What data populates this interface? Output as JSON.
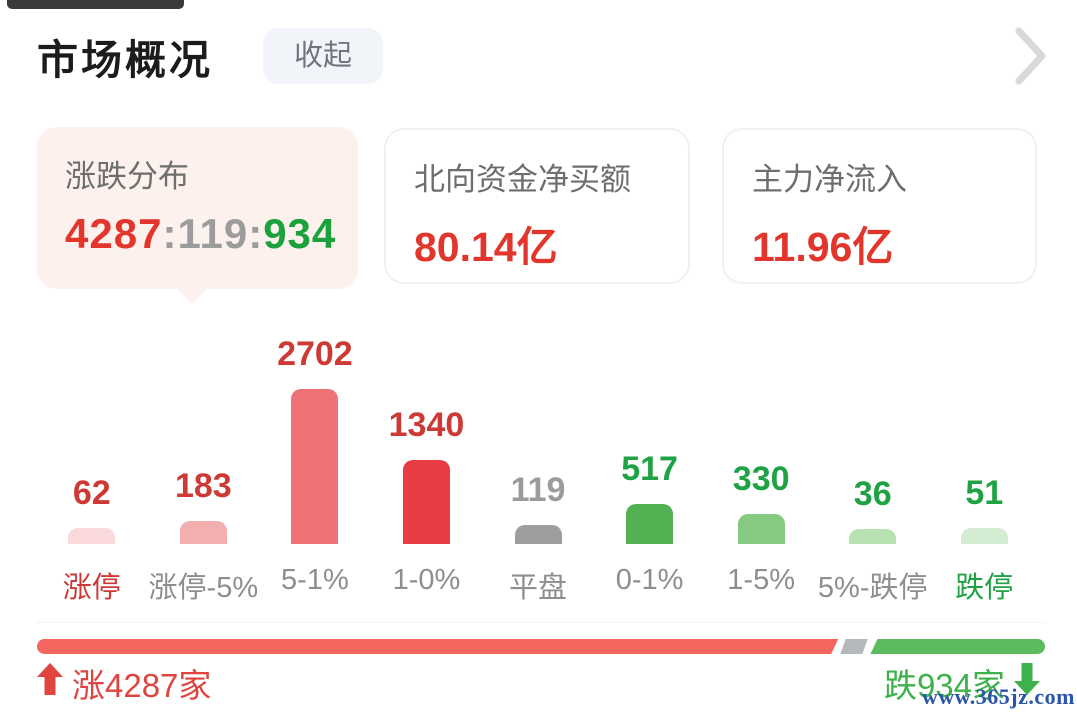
{
  "header": {
    "title": "市场概况",
    "collapse_label": "收起"
  },
  "cards": {
    "distribution": {
      "title": "涨跌分布",
      "rise": "4287",
      "flat": "119",
      "fall": "934",
      "sep": ":"
    },
    "northbound": {
      "title": "北向资金净买额",
      "value": "80.14亿"
    },
    "main_inflow": {
      "title": "主力净流入",
      "value": "11.96亿"
    }
  },
  "chart_data": {
    "type": "bar",
    "title": "涨跌分布",
    "categories": [
      "涨停",
      "涨停-5%",
      "5-1%",
      "1-0%",
      "平盘",
      "0-1%",
      "1-5%",
      "5%-跌停",
      "跌停"
    ],
    "values": [
      62,
      183,
      2702,
      1340,
      119,
      517,
      330,
      36,
      51
    ],
    "ylim": [
      0,
      2702
    ],
    "grid": false,
    "value_labels_position": "above-bars",
    "bars": [
      {
        "label": "涨停",
        "value": 62,
        "bar_color": "#f9d9d9",
        "value_color": "#cd3a36",
        "label_color": "#cd3a36"
      },
      {
        "label": "涨停-5%",
        "value": 183,
        "bar_color": "#f3aeb0",
        "value_color": "#cd3a36",
        "label_color": "#8e8e8e"
      },
      {
        "label": "5-1%",
        "value": 2702,
        "bar_color": "#ee7276",
        "value_color": "#cd3a36",
        "label_color": "#8e8e8e"
      },
      {
        "label": "1-0%",
        "value": 1340,
        "bar_color": "#e73d42",
        "value_color": "#cd3a36",
        "label_color": "#8e8e8e"
      },
      {
        "label": "平盘",
        "value": 119,
        "bar_color": "#9e9e9e",
        "value_color": "#9b9b9b",
        "label_color": "#8e8e8e"
      },
      {
        "label": "0-1%",
        "value": 517,
        "bar_color": "#52b153",
        "value_color": "#1fa244",
        "label_color": "#8e8e8e"
      },
      {
        "label": "1-5%",
        "value": 330,
        "bar_color": "#85ca80",
        "value_color": "#1fa244",
        "label_color": "#8e8e8e"
      },
      {
        "label": "5%-跌停",
        "value": 36,
        "bar_color": "#b8e0b3",
        "value_color": "#1fa244",
        "label_color": "#8e8e8e"
      },
      {
        "label": "跌停",
        "value": 51,
        "bar_color": "#d4edd2",
        "value_color": "#1fa244",
        "label_color": "#1fa244"
      }
    ]
  },
  "footer": {
    "rise_label": "涨4287家",
    "fall_label": "跌934家",
    "rise_count": 4287,
    "flat_count": 119,
    "fall_count": 934,
    "bar_colors": {
      "rise": "#f5655f",
      "flat": "#b5b9bc",
      "fall": "#5bbc5f"
    }
  },
  "watermark": {
    "text": "www.365jz.com"
  },
  "colors": {
    "rise_red": "#e2352c",
    "fall_green": "#1ba23d",
    "neutral_gray": "#9c9c9c"
  }
}
